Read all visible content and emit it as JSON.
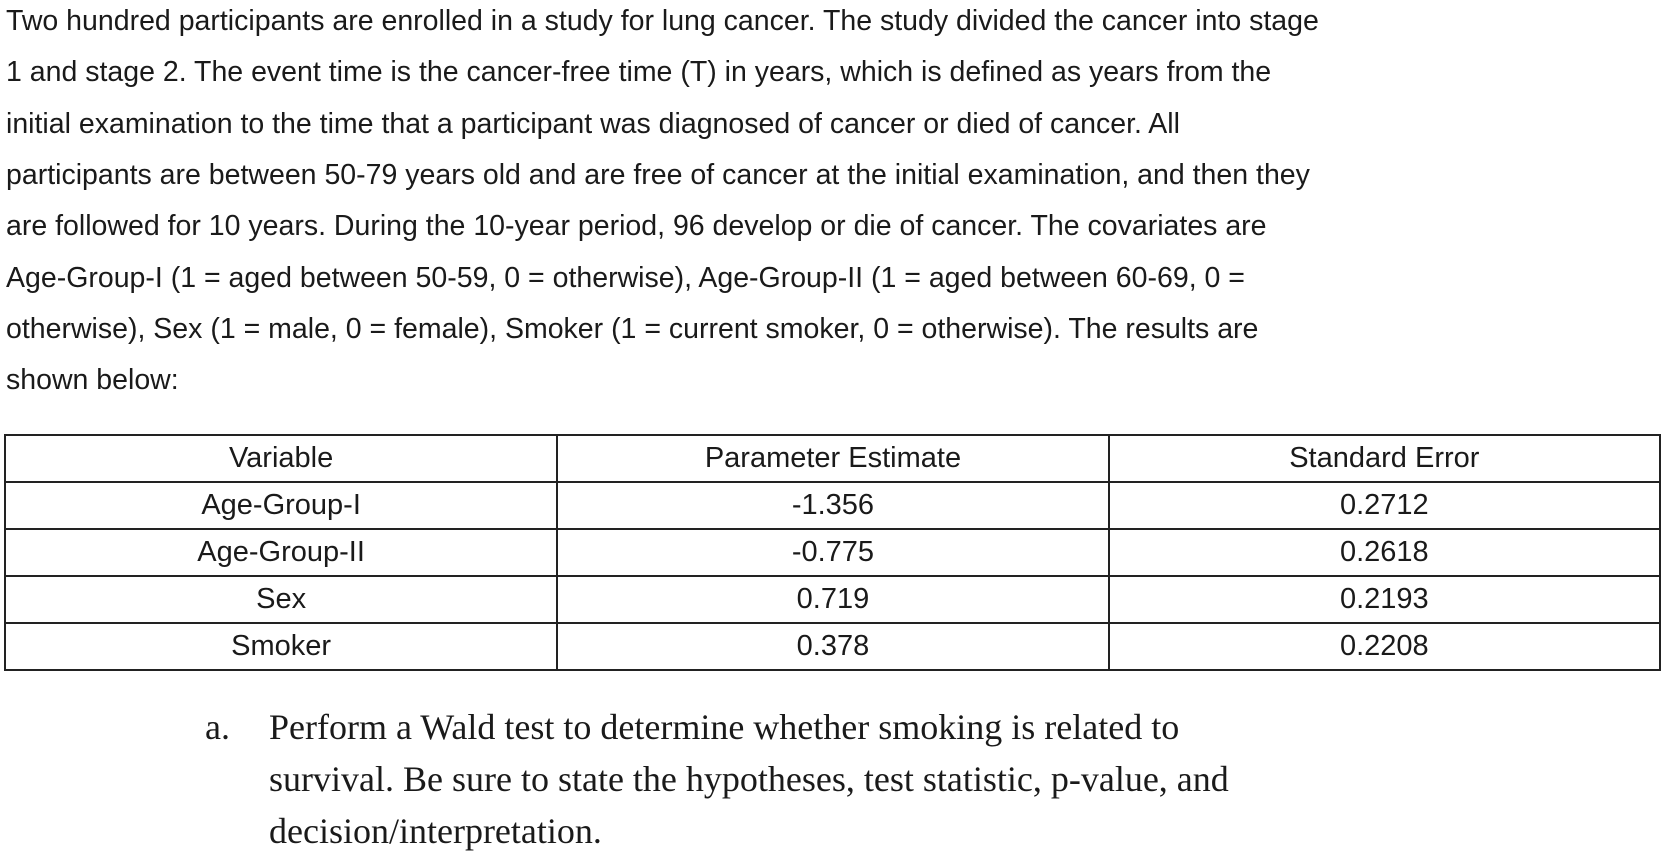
{
  "paragraph": {
    "lines": [
      "Two hundred participants are enrolled in a study for lung cancer. The study divided the cancer into stage",
      "1 and stage 2. The event time is the cancer-free time (T) in years, which is defined as years from the",
      "initial examination to the time that a participant was diagnosed of cancer or died of cancer. All",
      "participants are between 50-79 years old and are free of cancer at the initial examination, and then they",
      "are followed for 10 years. During the 10-year period, 96 develop or die of cancer. The covariates are",
      "Age-Group-I (1 = aged between 50-59, 0 = otherwise), Age-Group-II (1 = aged between 60-69, 0 =",
      "otherwise), Sex (1 = male, 0 = female), Smoker (1 = current smoker, 0 = otherwise). The results are",
      "shown below:"
    ]
  },
  "table": {
    "header": [
      "Variable",
      "Parameter Estimate",
      "Standard Error"
    ],
    "rows": [
      [
        "Age-Group-I",
        "-1.356",
        "0.2712"
      ],
      [
        "Age-Group-II",
        "-0.775",
        "0.2618"
      ],
      [
        "Sex",
        "0.719",
        "0.2193"
      ],
      [
        "Smoker",
        "0.378",
        "0.2208"
      ]
    ]
  },
  "question": {
    "label": "a.",
    "lines": [
      "Perform a Wald test to determine whether smoking is related to",
      "survival. Be sure to state the hypotheses, test statistic, p-value, and",
      "decision/interpretation."
    ]
  }
}
